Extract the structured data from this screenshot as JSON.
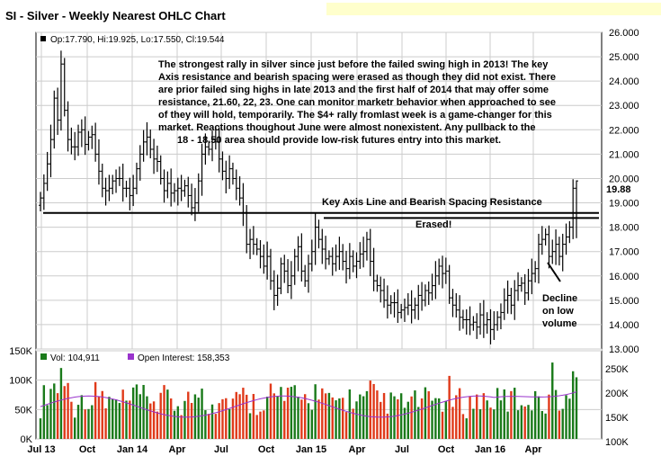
{
  "title": "SI - Silver - Weekly Nearest OHLC Chart",
  "price_legend": "Op:17.790, Hi:19.925, Lo:17.550, Cl:19.544",
  "last_price_label": "19.88",
  "commentary": [
    "The strongest rally in silver since just before the failed swing high in 2013! The key",
    "Axis resistance and bearish spacing were erased as though they did not exist.  There",
    "are prior failed sing highs in late 2013 and the first half of 2014 that may offer some",
    "resistance, 21.60, 22, 23.  One can monitor marketr behavior when approached to see",
    "of they will hold, temporarily.  The $4+ rally fromlast week is a game-changer for this",
    "market.  Reactions thoughout June were almost nonexistent.  Any pullback to the",
    "18 - 18.50 area should provide low-risk futures entry into this market."
  ],
  "annotations": {
    "key_axis": "Key Axis Line and Bearish Spacing Resistance",
    "erased": "Erased!",
    "decline": [
      "Decline",
      "on low",
      "volume"
    ]
  },
  "volume_legend": {
    "vol": "Vol: 104,911",
    "oi": "Open Interest: 158,353"
  },
  "colors": {
    "up": "#000000",
    "vol_up": "#1a7a1a",
    "vol_down": "#e03a1a",
    "open_interest": "#9933cc",
    "grid": "#cccccc",
    "header_bg": "#ffffcc"
  },
  "chart_data": [
    {
      "type": "ohlc",
      "y_axis_ticks": [
        "26.000",
        "25.000",
        "24.000",
        "23.000",
        "22.000",
        "21.000",
        "20.000",
        "19.000",
        "18.000",
        "17.000",
        "16.000",
        "15.000",
        "14.000",
        "13.000"
      ],
      "ylim": [
        13,
        26
      ],
      "x_axis_ticks": [
        "Jul 13",
        "Oct",
        "Jan 14",
        "Apr",
        "Jul",
        "Oct",
        "Jan 15",
        "Apr",
        "Jul",
        "Oct",
        "Jan 16",
        "Apr"
      ],
      "grid": true,
      "close": [
        19.2,
        19.8,
        20.6,
        21.6,
        23.3,
        22.4,
        24.7,
        22.8,
        21.6,
        21.3,
        21.3,
        21.9,
        22.0,
        21.4,
        21.7,
        21.8,
        21.0,
        20.3,
        19.6,
        19.5,
        19.6,
        19.9,
        20.0,
        20.0,
        19.6,
        19.6,
        19.3,
        19.6,
        20.4,
        21.0,
        21.5,
        21.7,
        21.2,
        20.8,
        20.7,
        20.0,
        19.5,
        19.8,
        19.4,
        19.5,
        19.6,
        19.5,
        19.7,
        19.3,
        18.8,
        19.0,
        19.9,
        21.0,
        21.3,
        21.2,
        21.6,
        21.5,
        20.8,
        20.3,
        20.0,
        20.4,
        20.0,
        19.6,
        19.2,
        18.6,
        17.3,
        17.5,
        17.3,
        17.1,
        16.8,
        16.4,
        16.8,
        15.8,
        15.2,
        15.5,
        16.5,
        16.2,
        15.6,
        16.0,
        16.8,
        17.2,
        16.2,
        15.8,
        16.5,
        17.0,
        18.0,
        17.5,
        17.1,
        16.7,
        16.8,
        16.5,
        16.8,
        17.0,
        16.6,
        16.3,
        16.8,
        16.4,
        16.6,
        16.9,
        17.0,
        17.5,
        16.6,
        15.8,
        15.6,
        15.4,
        15.0,
        14.8,
        14.9,
        14.9,
        14.5,
        14.6,
        14.7,
        14.8,
        14.6,
        14.8,
        15.2,
        15.0,
        15.4,
        15.3,
        15.6,
        16.0,
        16.4,
        16.1,
        16.2,
        15.1,
        14.8,
        14.6,
        14.3,
        14.2,
        14.2,
        14.0,
        14.1,
        13.9,
        14.4,
        14.0,
        14.2,
        13.8,
        14.0,
        14.3,
        14.5,
        15.0,
        15.2,
        14.8,
        15.4,
        15.6,
        15.7,
        15.3,
        15.8,
        16.1,
        16.3,
        17.3,
        17.5,
        17.7,
        16.8,
        17.0,
        17.3,
        16.8,
        17.3,
        17.6,
        18.0,
        19.6,
        19.9
      ],
      "volume_ylim": [
        0,
        150000
      ],
      "volume_ticks": [
        "150K",
        "100K",
        "50K",
        "0K"
      ],
      "open_interest_ticks": [
        "250K",
        "200K",
        "150K",
        "100K"
      ],
      "open_interest_ylim": [
        100000,
        250000
      ]
    }
  ]
}
